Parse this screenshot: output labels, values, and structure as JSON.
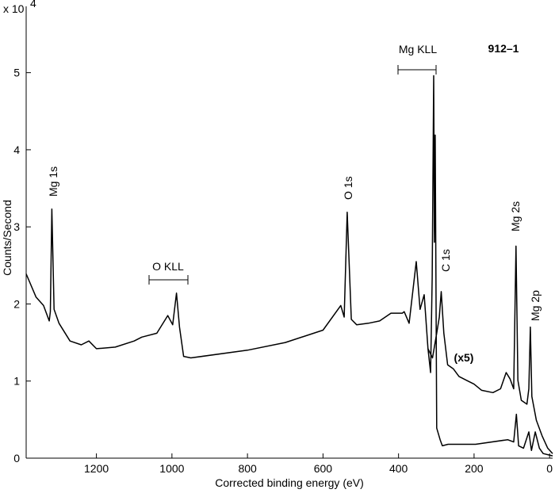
{
  "chart_data": {
    "type": "line",
    "title": "912–1",
    "x_label": "Corrected binding energy (eV)",
    "y_label": "Counts/Second",
    "y_multiplier": "x 10",
    "y_multiplier_exponent": "4",
    "xlim": [
      1386,
      -8
    ],
    "ylim": [
      0,
      5.86
    ],
    "xticks": [
      1200,
      1000,
      800,
      600,
      400,
      200,
      0
    ],
    "yticks": [
      0,
      1,
      2,
      3,
      4,
      5
    ],
    "grid": false,
    "annotations": [
      "Mg 1s",
      "O KLL",
      "O 1s",
      "Mg KLL",
      "C 1s",
      "(x5)",
      "Mg 2s",
      "Mg 2p"
    ],
    "series": [
      {
        "color": "#000000",
        "x": [
          1386,
          1360,
          1340,
          1325,
          1322,
          1318,
          1312,
          1299,
          1270,
          1240,
          1220,
          1200,
          1150,
          1100,
          1080,
          1040,
          1011,
          998,
          988,
          980,
          969,
          950,
          800,
          700,
          600,
          553,
          544,
          536,
          525,
          511,
          480,
          450,
          420,
          390,
          385,
          372,
          353,
          343,
          332,
          322,
          315,
          311,
          307,
          305,
          303,
          299,
          290,
          284,
          269,
          196,
          111,
          95,
          88,
          82,
          69,
          55,
          48,
          38,
          27,
          17,
          -8
        ],
        "values": [
          2.39,
          2.09,
          1.98,
          1.78,
          1.9,
          3.23,
          1.93,
          1.75,
          1.52,
          1.47,
          1.52,
          1.42,
          1.44,
          1.52,
          1.57,
          1.62,
          1.85,
          1.73,
          2.14,
          1.7,
          1.32,
          1.3,
          1.4,
          1.5,
          1.66,
          1.98,
          1.83,
          3.19,
          1.8,
          1.73,
          1.75,
          1.78,
          1.88,
          1.88,
          1.9,
          1.75,
          2.55,
          1.93,
          2.12,
          1.42,
          1.11,
          2.34,
          4.96,
          2.8,
          4.19,
          0.39,
          0.24,
          0.16,
          0.18,
          0.18,
          0.24,
          0.21,
          0.57,
          0.16,
          0.13,
          0.34,
          0.1,
          0.34,
          0.13,
          0.06,
          0.03
        ]
      },
      {
        "color": "#000000",
        "x": [
          322,
          310,
          299,
          292,
          287,
          280,
          270,
          255,
          240,
          220,
          200,
          180,
          150,
          130,
          115,
          105,
          95,
          89,
          84,
          75,
          60,
          55,
          51,
          47,
          35,
          20,
          5,
          -8
        ],
        "values": [
          1.42,
          1.3,
          1.62,
          1.83,
          2.16,
          1.62,
          1.21,
          1.16,
          1.06,
          1.01,
          0.96,
          0.88,
          0.85,
          0.9,
          1.11,
          1.03,
          0.9,
          2.75,
          1.01,
          0.75,
          0.7,
          0.9,
          1.7,
          0.8,
          0.49,
          0.29,
          0.13,
          0.06
        ]
      }
    ]
  }
}
